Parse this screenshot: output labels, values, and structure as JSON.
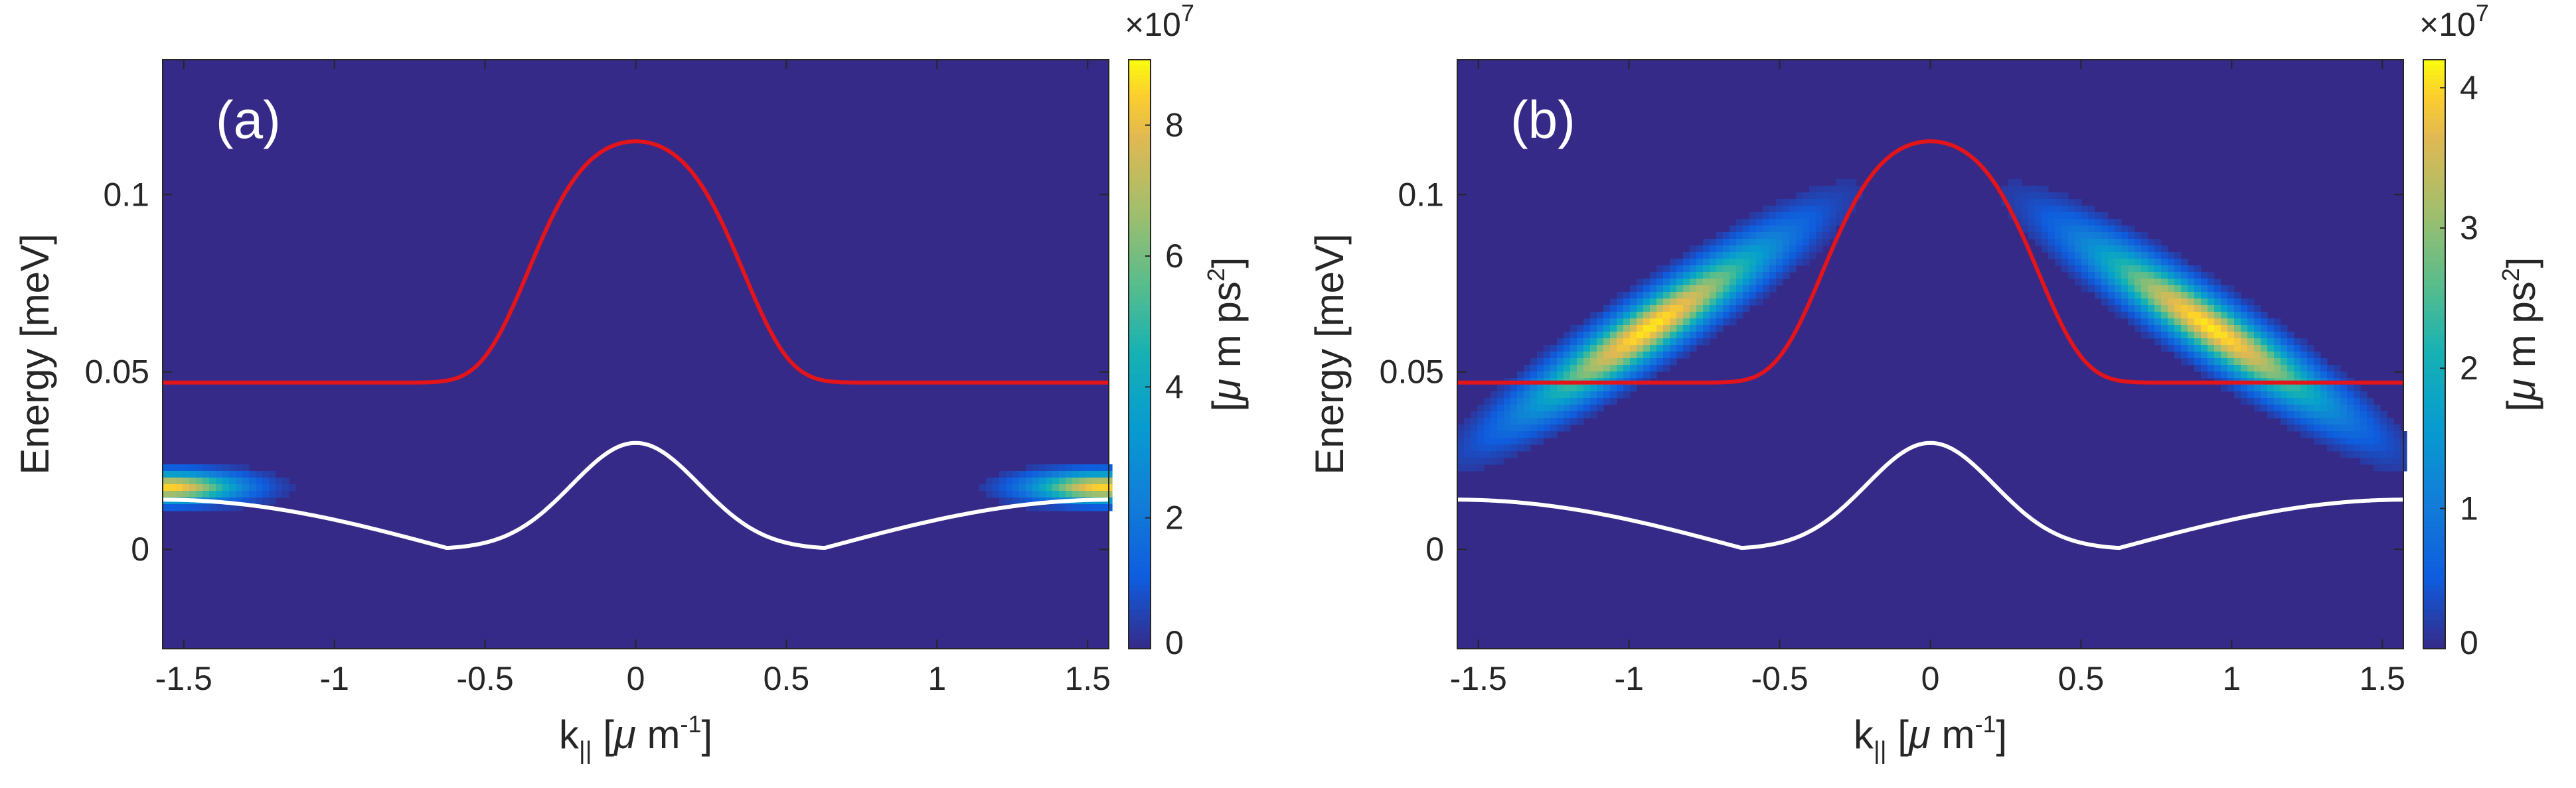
{
  "chart_data": [
    {
      "panel": "(a)",
      "type": "heatmap",
      "xlabel_main": "k",
      "xlabel_sub": "||",
      "xlabel_unit_pre": "[",
      "xlabel_unit_mu": "μ",
      "xlabel_unit_mid": " m",
      "xlabel_unit_sup": "-1",
      "xlabel_unit_post": "]",
      "ylabel": "Energy [meV]",
      "xlim": [
        -1.57,
        1.57
      ],
      "ylim": [
        -0.028,
        0.138
      ],
      "xticks": [
        -1.5,
        -1,
        -0.5,
        0,
        0.5,
        1,
        1.5
      ],
      "xtick_labels": [
        "-1.5",
        "-1",
        "-0.5",
        "0",
        "0.5",
        "1",
        "1.5"
      ],
      "yticks": [
        0,
        0.05,
        0.1
      ],
      "ytick_labels": [
        "0",
        "0.05",
        "0.1"
      ],
      "colorbar": {
        "min": 0,
        "max": 9,
        "ticks": [
          0,
          2,
          4,
          6,
          8
        ],
        "tick_labels": [
          "0",
          "2",
          "4",
          "6",
          "8"
        ],
        "exponent_pre": "×10",
        "exponent_sup": "7",
        "label_pre": "[",
        "label_mu": "μ",
        "label_mid": " m ps",
        "label_sup": "2",
        "label_post": "]"
      },
      "series": [
        {
          "name": "upper band",
          "color": "#e4141b",
          "E_min": 0.047,
          "E_max": 0.115,
          "width": 0.42
        },
        {
          "name": "lower band",
          "color": "#ffffff",
          "E_min": 0.0,
          "E_at_0": 0.03,
          "E_edge": 0.014,
          "k_min": 0.61
        }
      ],
      "blobs": [
        {
          "k": -1.55,
          "E": 0.0175,
          "sk": 0.16,
          "sE": 0.0028,
          "amp": 8.5,
          "tilt": 0.0
        },
        {
          "k": 1.55,
          "E": 0.0175,
          "sk": 0.16,
          "sE": 0.0028,
          "amp": 8.5,
          "tilt": 0.0
        }
      ]
    },
    {
      "panel": "(b)",
      "type": "heatmap",
      "xlabel_main": "k",
      "xlabel_sub": "||",
      "xlabel_unit_pre": "[",
      "xlabel_unit_mu": "μ",
      "xlabel_unit_mid": " m",
      "xlabel_unit_sup": "-1",
      "xlabel_unit_post": "]",
      "ylabel": "Energy [meV]",
      "xlim": [
        -1.57,
        1.57
      ],
      "ylim": [
        -0.028,
        0.138
      ],
      "xticks": [
        -1.5,
        -1,
        -0.5,
        0,
        0.5,
        1,
        1.5
      ],
      "xtick_labels": [
        "-1.5",
        "-1",
        "-0.5",
        "0",
        "0.5",
        "1",
        "1.5"
      ],
      "yticks": [
        0,
        0.05,
        0.1
      ],
      "ytick_labels": [
        "0",
        "0.05",
        "0.1"
      ],
      "colorbar": {
        "min": 0,
        "max": 4.2,
        "ticks": [
          0,
          1,
          2,
          3,
          4
        ],
        "tick_labels": [
          "0",
          "1",
          "2",
          "3",
          "4"
        ],
        "exponent_pre": "×10",
        "exponent_sup": "7",
        "label_pre": "[",
        "label_mu": "μ",
        "label_mid": " m ps",
        "label_sup": "2",
        "label_post": "]"
      },
      "series": [
        {
          "name": "upper band",
          "color": "#e4141b",
          "E_min": 0.047,
          "E_max": 0.115,
          "width": 0.42
        },
        {
          "name": "lower band",
          "color": "#ffffff",
          "E_min": 0.0,
          "E_at_0": 0.03,
          "E_edge": 0.014,
          "k_min": 0.61
        }
      ],
      "blobs": [
        {
          "k": -0.93,
          "E": 0.0625,
          "sk": 0.27,
          "sE": 0.0058,
          "amp": 4.1,
          "tilt": 0.055
        },
        {
          "k": 0.93,
          "E": 0.0625,
          "sk": 0.27,
          "sE": 0.0058,
          "amp": 4.1,
          "tilt": -0.055
        }
      ]
    }
  ]
}
